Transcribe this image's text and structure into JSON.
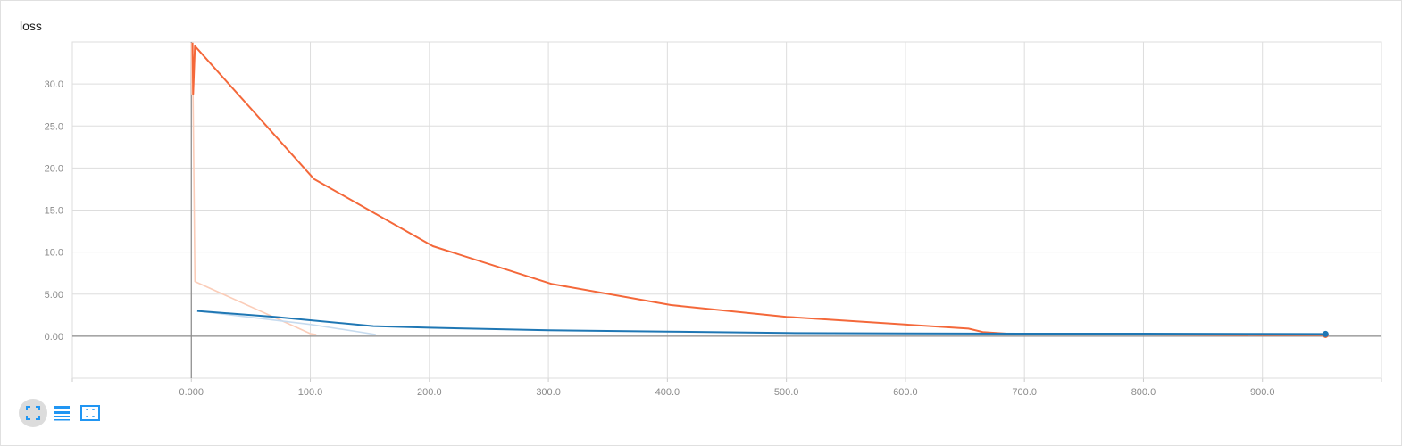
{
  "title": "loss",
  "colors": {
    "orange": "#f4683a",
    "orange_light": "#fbcdb9",
    "blue": "#1f77b4",
    "blue_light": "#c6dbef",
    "accent": "#2196f3"
  },
  "toolbar": [
    {
      "icon": "fit-domain-icon"
    },
    {
      "icon": "data-table-icon"
    },
    {
      "icon": "selection-box-icon"
    }
  ],
  "chart_data": {
    "type": "line",
    "title": "loss",
    "xlabel": "",
    "ylabel": "",
    "xlim": [
      -100,
      1000
    ],
    "ylim": [
      -5,
      35
    ],
    "x_ticks": [
      "0.000",
      "100.0",
      "200.0",
      "300.0",
      "400.0",
      "500.0",
      "600.0",
      "700.0",
      "800.0",
      "900.0"
    ],
    "x_tick_values": [
      0,
      100,
      200,
      300,
      400,
      500,
      600,
      700,
      800,
      900
    ],
    "y_ticks": [
      "0.00",
      "5.00",
      "10.0",
      "15.0",
      "20.0",
      "25.0",
      "30.0"
    ],
    "y_tick_values": [
      0,
      5,
      10,
      15,
      20,
      25,
      30
    ],
    "grid": true,
    "series": [
      {
        "color": "#fbcdb9",
        "x": [
          0,
          0.5,
          1,
          3,
          100,
          105
        ],
        "y": [
          34.9,
          28.8,
          34.9,
          6.5,
          0.3,
          0.2
        ]
      },
      {
        "color": "#f4683a",
        "x": [
          1,
          1.5,
          3,
          103,
          203,
          303,
          403,
          500,
          653,
          665,
          685,
          700,
          800,
          900,
          953
        ],
        "y": [
          34.9,
          28.8,
          34.5,
          18.7,
          10.7,
          6.2,
          3.7,
          2.3,
          0.9,
          0.5,
          0.3,
          0.25,
          0.2,
          0.15,
          0.15
        ]
      },
      {
        "color": "#c6dbef",
        "x": [
          5,
          100,
          155
        ],
        "y": [
          3.0,
          1.4,
          0.2
        ]
      },
      {
        "color": "#1f77b4",
        "x": [
          5,
          70,
          153,
          200,
          300,
          400,
          500,
          600,
          700,
          800,
          900,
          953
        ],
        "y": [
          3.0,
          2.3,
          1.2,
          1.0,
          0.7,
          0.55,
          0.38,
          0.33,
          0.3,
          0.3,
          0.27,
          0.26
        ]
      }
    ]
  }
}
